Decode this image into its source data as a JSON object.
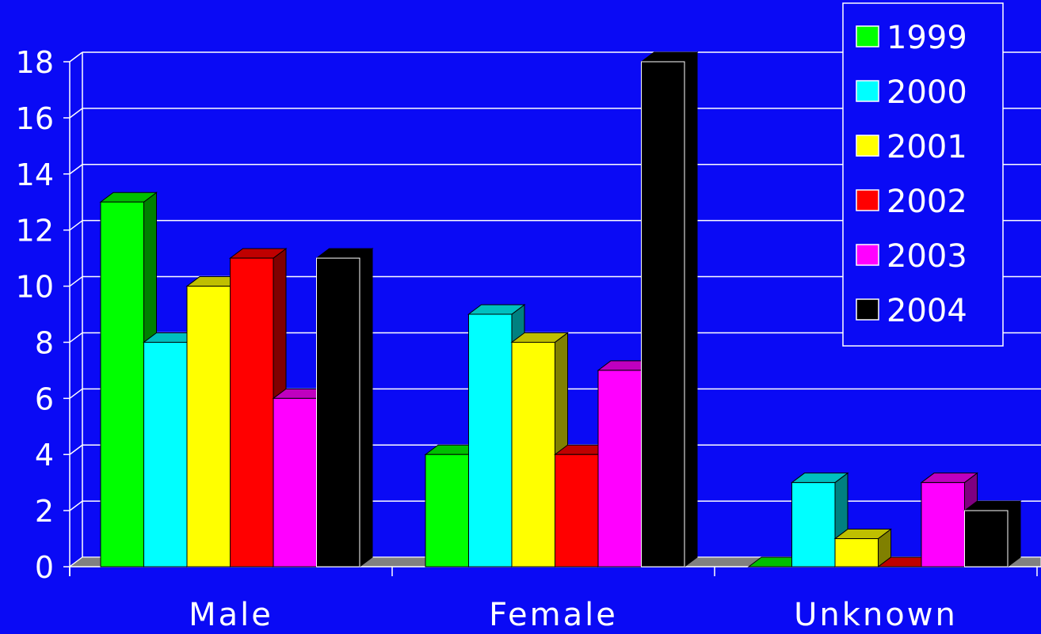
{
  "chart_data": {
    "type": "bar",
    "title": "",
    "xlabel": "",
    "ylabel": "",
    "categories": [
      "Male",
      "Female",
      "Unknown"
    ],
    "series": [
      {
        "name": "1999",
        "color": "#00ff00",
        "values": [
          13,
          4,
          0
        ]
      },
      {
        "name": "2000",
        "color": "#00ffff",
        "values": [
          8,
          9,
          3
        ]
      },
      {
        "name": "2001",
        "color": "#ffff00",
        "values": [
          10,
          8,
          1
        ]
      },
      {
        "name": "2002",
        "color": "#ff0000",
        "values": [
          11,
          4,
          0
        ]
      },
      {
        "name": "2003",
        "color": "#ff00ff",
        "values": [
          6,
          7,
          3
        ]
      },
      {
        "name": "2004",
        "color": "#000000",
        "values": [
          11,
          18,
          2
        ]
      }
    ],
    "ylim": [
      0,
      18
    ],
    "yticks": [
      "0",
      "2",
      "4",
      "6",
      "8",
      "10",
      "12",
      "14",
      "16",
      "18"
    ],
    "grid": true,
    "legend": "top-right",
    "three_d": true
  },
  "colors": {
    "background": "#0a0af5",
    "axis": "#ffffff",
    "floor": "#808080",
    "text": "#ffffff"
  }
}
